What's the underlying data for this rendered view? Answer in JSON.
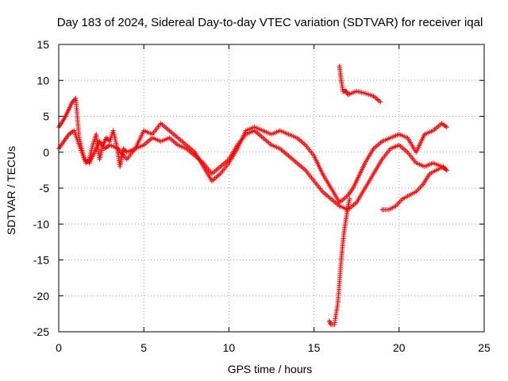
{
  "chart_data": {
    "type": "scatter",
    "title": "Day 183 of 2024, Sidereal Day-to-day VTEC variation (SDTVAR) for receiver iqal",
    "xlabel": "GPS time / hours",
    "ylabel": "SDTVAR / TECUs",
    "xlim": [
      0,
      25
    ],
    "ylim": [
      -25,
      15
    ],
    "x_ticks": [
      0,
      5,
      10,
      15,
      20,
      25
    ],
    "y_ticks": [
      -25,
      -20,
      -15,
      -10,
      -5,
      0,
      5,
      10,
      15
    ],
    "grid": true,
    "marker": "+",
    "series": [
      {
        "name": "SDTVAR",
        "color": "#ff0000",
        "track_a": {
          "x": [
            0.0,
            0.2,
            0.4,
            0.6,
            0.8,
            1.0,
            1.2,
            1.4,
            1.6,
            1.8,
            2.0,
            2.2,
            2.4,
            2.6,
            2.8,
            3.0,
            3.2,
            3.4,
            3.6,
            3.8,
            4.0,
            4.5,
            5.0,
            5.5,
            6.0,
            6.5,
            7.0,
            7.5,
            8.0,
            8.5,
            9.0,
            9.5,
            10.0,
            10.5,
            11.0,
            11.5,
            12.0,
            12.5,
            13.0,
            13.5,
            14.0,
            14.5,
            15.0,
            15.5,
            16.0,
            16.5,
            17.0,
            17.3,
            17.6,
            18.0,
            18.5,
            19.0,
            19.5,
            20.0,
            20.5,
            21.0,
            21.5,
            22.0,
            22.5,
            22.8
          ],
          "y": [
            3.5,
            4.2,
            5.0,
            6.0,
            7.0,
            7.5,
            2.0,
            0.0,
            -1.5,
            -1.0,
            1.0,
            2.5,
            -1.0,
            1.0,
            2.0,
            1.5,
            3.0,
            1.0,
            -2.0,
            0.5,
            0.0,
            0.5,
            3.0,
            2.5,
            4.0,
            3.0,
            2.0,
            1.0,
            0.0,
            -2.0,
            -4.0,
            -3.0,
            -1.5,
            0.5,
            3.0,
            3.5,
            3.0,
            2.5,
            3.0,
            2.5,
            2.0,
            1.0,
            -0.5,
            -3.0,
            -5.0,
            -7.0,
            -6.0,
            -5.0,
            -3.5,
            -1.5,
            0.5,
            1.5,
            2.0,
            2.5,
            2.0,
            0.0,
            2.5,
            3.0,
            4.0,
            3.5
          ]
        },
        "track_b": {
          "x": [
            0.0,
            0.3,
            0.6,
            0.9,
            1.2,
            1.5,
            1.8,
            2.1,
            2.4,
            2.7,
            3.0,
            3.5,
            4.0,
            4.5,
            5.0,
            5.5,
            6.0,
            6.5,
            7.0,
            7.5,
            8.0,
            8.5,
            9.0,
            9.5,
            10.0,
            10.5,
            11.0,
            11.5,
            12.0,
            12.5,
            13.0,
            13.5,
            14.0,
            14.5,
            15.0,
            15.5,
            16.0,
            16.5,
            17.0,
            17.5,
            18.0,
            18.5,
            19.0,
            19.5,
            20.0,
            20.5,
            21.0,
            21.5,
            22.0,
            22.5,
            22.8
          ],
          "y": [
            0.5,
            1.5,
            2.5,
            3.0,
            1.0,
            -1.0,
            -1.5,
            0.0,
            1.5,
            0.5,
            1.0,
            0.5,
            -1.0,
            0.5,
            1.0,
            2.0,
            1.5,
            2.0,
            1.0,
            0.5,
            -0.5,
            -1.5,
            -3.0,
            -2.0,
            -1.0,
            1.0,
            2.5,
            3.0,
            2.0,
            1.0,
            0.5,
            -0.5,
            -1.5,
            -2.5,
            -4.0,
            -5.5,
            -6.5,
            -7.5,
            -8.0,
            -7.0,
            -5.0,
            -3.0,
            -1.0,
            0.5,
            1.0,
            0.0,
            -1.5,
            -2.0,
            -1.5,
            -2.0,
            -2.5
          ]
        },
        "track_c": {
          "x": [
            19.0,
            19.4,
            19.8,
            20.2,
            20.6,
            21.0,
            21.4,
            21.8,
            22.2,
            22.6,
            22.8
          ],
          "y": [
            -8.0,
            -8.0,
            -7.5,
            -6.5,
            -6.0,
            -5.5,
            -4.5,
            -3.0,
            -2.5,
            -2.0,
            -2.5
          ]
        },
        "track_d": {
          "x": [
            16.5,
            16.6,
            16.7,
            16.8,
            16.9,
            17.0,
            17.5,
            18.0,
            18.5,
            18.9
          ],
          "y": [
            12.0,
            10.0,
            8.5,
            8.5,
            8.5,
            8.0,
            8.5,
            8.2,
            7.8,
            7.0
          ]
        },
        "track_e": {
          "x": [
            15.9,
            16.0,
            16.2,
            16.4,
            16.5,
            16.6,
            16.7,
            16.8,
            16.9,
            17.0,
            17.1
          ],
          "y": [
            -23.5,
            -24.0,
            -24.0,
            -21.0,
            -18.0,
            -15.0,
            -12.5,
            -10.5,
            -9.0,
            -7.5,
            -6.5
          ]
        }
      }
    ]
  }
}
